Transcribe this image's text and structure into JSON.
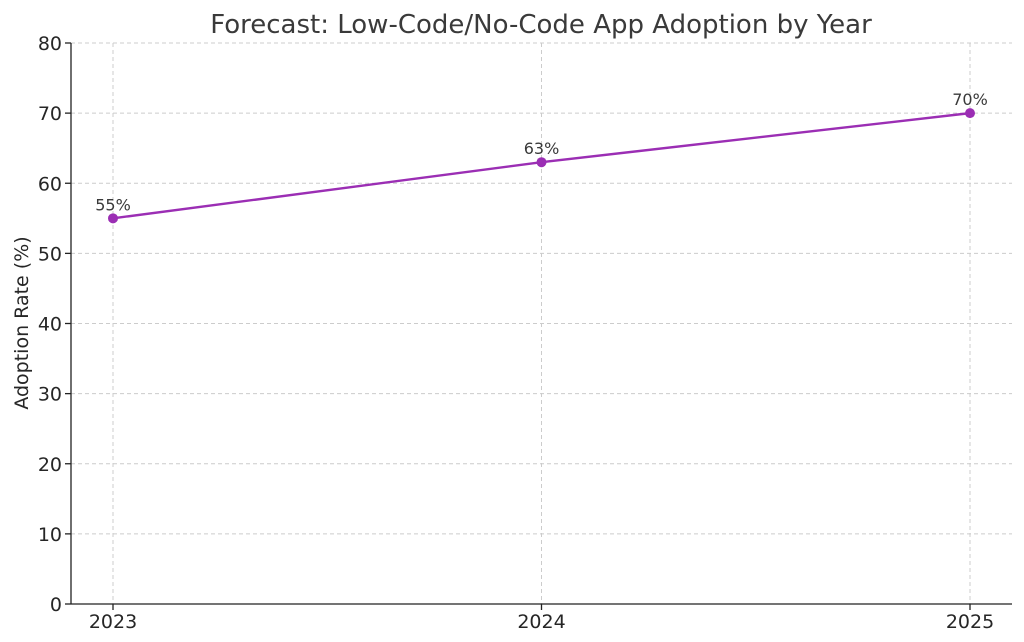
{
  "chart_data": {
    "type": "line",
    "title": "Forecast: Low-Code/No-Code App Adoption by Year",
    "xlabel": "",
    "ylabel": "Adoption Rate (%)",
    "categories": [
      "2023",
      "2024",
      "2025"
    ],
    "series": [
      {
        "values": [
          55,
          63,
          70
        ],
        "labels": [
          "55%",
          "63%",
          "70%"
        ],
        "color": "#9b2eb4"
      }
    ],
    "ylim": [
      0,
      80
    ],
    "yticks": [
      0,
      10,
      20,
      30,
      40,
      50,
      60,
      70,
      80
    ],
    "grid": true,
    "legend": "none"
  }
}
